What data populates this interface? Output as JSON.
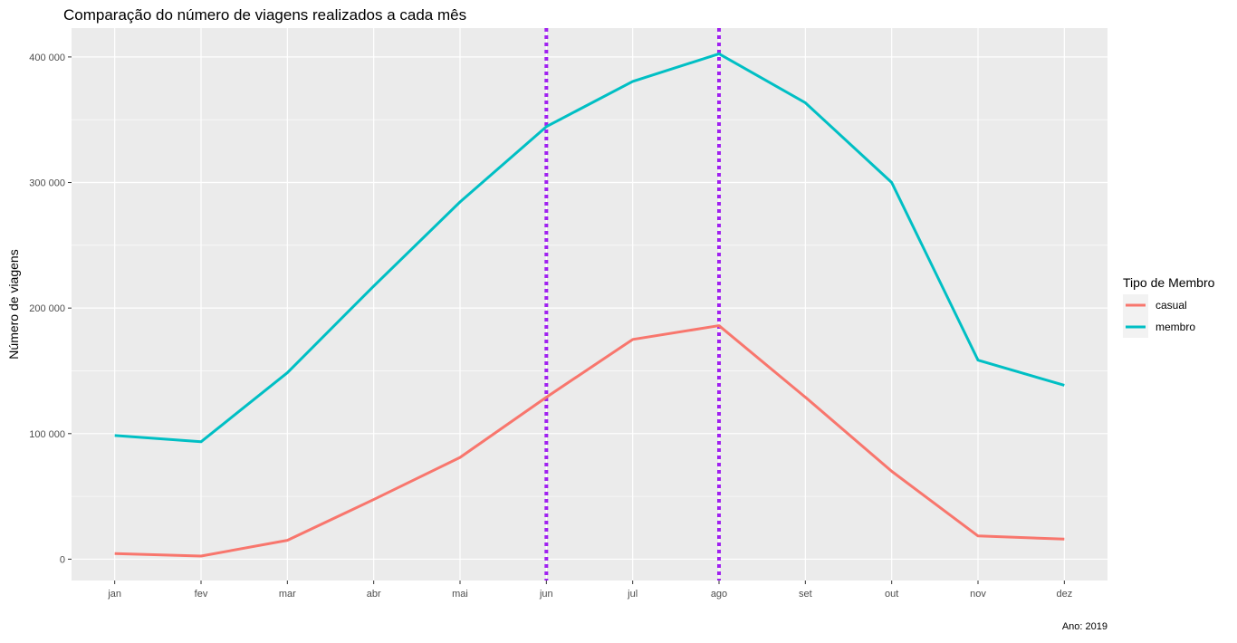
{
  "chart_data": {
    "type": "line",
    "title": "Comparação do número de viagens realizados a cada mês",
    "xlabel": "",
    "ylabel": "Número de viagens",
    "caption": "Ano: 2019",
    "categories": [
      "jan",
      "fev",
      "mar",
      "abr",
      "mai",
      "jun",
      "jul",
      "ago",
      "set",
      "out",
      "nov",
      "dez"
    ],
    "series": [
      {
        "name": "casual",
        "color": "#F8766D",
        "values": [
          4500,
          2500,
          15000,
          47500,
          81000,
          129000,
          175000,
          186000,
          129000,
          70000,
          18500,
          16000
        ]
      },
      {
        "name": "membro",
        "color": "#00BFC4",
        "values": [
          98500,
          93500,
          148500,
          217500,
          284500,
          344500,
          380500,
          402500,
          363500,
          300000,
          158500,
          138500
        ]
      }
    ],
    "vertical_lines": {
      "at": [
        "jun",
        "ago"
      ],
      "color": "#A020F0",
      "style": "dotted"
    },
    "ylim": [
      -17000,
      423000
    ],
    "yticks": [
      0,
      100000,
      200000,
      300000,
      400000
    ],
    "ytick_labels": [
      "0",
      "100 000",
      "200 000",
      "300 000",
      "400 000"
    ],
    "legend": {
      "title": "Tipo de Membro",
      "position": "right"
    },
    "grid": true,
    "background": "#EBEBEB"
  }
}
